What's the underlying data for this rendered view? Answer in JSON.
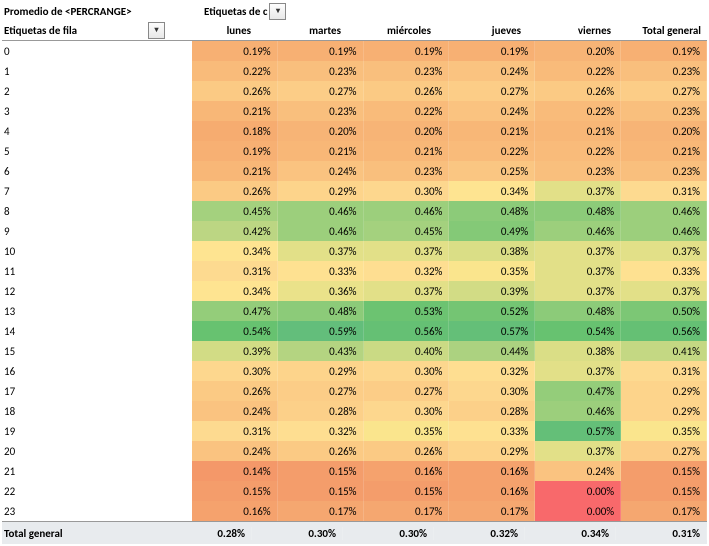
{
  "title_left": "Promedio de <PERCRANGE>",
  "title_right": "Etiquetas de c",
  "row_header_label": "Etiquetas de fila",
  "total_label": "Total general",
  "columns": [
    "lunes",
    "martes",
    "miércoles",
    "jueves",
    "viernes",
    "Total general"
  ],
  "rows": [
    {
      "label": "0",
      "cells": [
        {
          "v": "0.19%",
          "c": "#f7b073"
        },
        {
          "v": "0.19%",
          "c": "#f7b073"
        },
        {
          "v": "0.19%",
          "c": "#f7b073"
        },
        {
          "v": "0.19%",
          "c": "#f7b073"
        },
        {
          "v": "0.20%",
          "c": "#f7b476"
        },
        {
          "v": "0.19%",
          "c": "#f7b073"
        }
      ]
    },
    {
      "label": "1",
      "cells": [
        {
          "v": "0.22%",
          "c": "#f9bb7a"
        },
        {
          "v": "0.23%",
          "c": "#f9bf7d"
        },
        {
          "v": "0.23%",
          "c": "#f9bf7d"
        },
        {
          "v": "0.24%",
          "c": "#fac380"
        },
        {
          "v": "0.22%",
          "c": "#f9bb7a"
        },
        {
          "v": "0.23%",
          "c": "#f9bf7d"
        }
      ]
    },
    {
      "label": "2",
      "cells": [
        {
          "v": "0.26%",
          "c": "#fbca84"
        },
        {
          "v": "0.27%",
          "c": "#fccd87"
        },
        {
          "v": "0.26%",
          "c": "#fbca84"
        },
        {
          "v": "0.27%",
          "c": "#fccd87"
        },
        {
          "v": "0.26%",
          "c": "#fbca84"
        },
        {
          "v": "0.27%",
          "c": "#fccd87"
        }
      ]
    },
    {
      "label": "3",
      "cells": [
        {
          "v": "0.21%",
          "c": "#f8b777"
        },
        {
          "v": "0.23%",
          "c": "#f9bf7d"
        },
        {
          "v": "0.22%",
          "c": "#f9bb7a"
        },
        {
          "v": "0.24%",
          "c": "#fac380"
        },
        {
          "v": "0.22%",
          "c": "#f9bb7a"
        },
        {
          "v": "0.23%",
          "c": "#f9bf7d"
        }
      ]
    },
    {
      "label": "4",
      "cells": [
        {
          "v": "0.18%",
          "c": "#f6ac70"
        },
        {
          "v": "0.20%",
          "c": "#f7b476"
        },
        {
          "v": "0.20%",
          "c": "#f7b476"
        },
        {
          "v": "0.21%",
          "c": "#f8b777"
        },
        {
          "v": "0.21%",
          "c": "#f8b777"
        },
        {
          "v": "0.20%",
          "c": "#f7b476"
        }
      ]
    },
    {
      "label": "5",
      "cells": [
        {
          "v": "0.19%",
          "c": "#f7b073"
        },
        {
          "v": "0.21%",
          "c": "#f8b777"
        },
        {
          "v": "0.21%",
          "c": "#f8b777"
        },
        {
          "v": "0.22%",
          "c": "#f9bb7a"
        },
        {
          "v": "0.22%",
          "c": "#f9bb7a"
        },
        {
          "v": "0.21%",
          "c": "#f8b777"
        }
      ]
    },
    {
      "label": "6",
      "cells": [
        {
          "v": "0.21%",
          "c": "#f8b777"
        },
        {
          "v": "0.24%",
          "c": "#fac380"
        },
        {
          "v": "0.23%",
          "c": "#f9bf7d"
        },
        {
          "v": "0.25%",
          "c": "#fac682"
        },
        {
          "v": "0.23%",
          "c": "#f9bf7d"
        },
        {
          "v": "0.23%",
          "c": "#f9bf7d"
        }
      ]
    },
    {
      "label": "7",
      "cells": [
        {
          "v": "0.26%",
          "c": "#fbca84"
        },
        {
          "v": "0.29%",
          "c": "#fdd48b"
        },
        {
          "v": "0.30%",
          "c": "#fdd78e"
        },
        {
          "v": "0.34%",
          "c": "#fee491"
        },
        {
          "v": "0.37%",
          "c": "#e2e088"
        },
        {
          "v": "0.31%",
          "c": "#fdda90"
        }
      ]
    },
    {
      "label": "8",
      "cells": [
        {
          "v": "0.45%",
          "c": "#a4d17e"
        },
        {
          "v": "0.46%",
          "c": "#9ccf7c"
        },
        {
          "v": "0.46%",
          "c": "#9ccf7c"
        },
        {
          "v": "0.48%",
          "c": "#8ccb79"
        },
        {
          "v": "0.48%",
          "c": "#8ccb79"
        },
        {
          "v": "0.46%",
          "c": "#9ccf7c"
        }
      ]
    },
    {
      "label": "9",
      "cells": [
        {
          "v": "0.42%",
          "c": "#bcd683"
        },
        {
          "v": "0.46%",
          "c": "#9ccf7c"
        },
        {
          "v": "0.45%",
          "c": "#a4d17e"
        },
        {
          "v": "0.49%",
          "c": "#84c977"
        },
        {
          "v": "0.46%",
          "c": "#9ccf7c"
        },
        {
          "v": "0.46%",
          "c": "#9ccf7c"
        }
      ]
    },
    {
      "label": "10",
      "cells": [
        {
          "v": "0.34%",
          "c": "#fee491"
        },
        {
          "v": "0.37%",
          "c": "#e2e088"
        },
        {
          "v": "0.37%",
          "c": "#e2e088"
        },
        {
          "v": "0.38%",
          "c": "#dade86"
        },
        {
          "v": "0.37%",
          "c": "#e2e088"
        },
        {
          "v": "0.37%",
          "c": "#e2e088"
        }
      ]
    },
    {
      "label": "11",
      "cells": [
        {
          "v": "0.31%",
          "c": "#fdda90"
        },
        {
          "v": "0.33%",
          "c": "#fee191"
        },
        {
          "v": "0.32%",
          "c": "#fede91"
        },
        {
          "v": "0.35%",
          "c": "#fae58d"
        },
        {
          "v": "0.37%",
          "c": "#e2e088"
        },
        {
          "v": "0.33%",
          "c": "#fee191"
        }
      ]
    },
    {
      "label": "12",
      "cells": [
        {
          "v": "0.34%",
          "c": "#fee491"
        },
        {
          "v": "0.36%",
          "c": "#eae28a"
        },
        {
          "v": "0.37%",
          "c": "#e2e088"
        },
        {
          "v": "0.39%",
          "c": "#d2dc85"
        },
        {
          "v": "0.37%",
          "c": "#e2e088"
        },
        {
          "v": "0.37%",
          "c": "#e2e088"
        }
      ]
    },
    {
      "label": "13",
      "cells": [
        {
          "v": "0.47%",
          "c": "#94cd7a"
        },
        {
          "v": "0.48%",
          "c": "#8ccb79"
        },
        {
          "v": "0.53%",
          "c": "#6cc371"
        },
        {
          "v": "0.52%",
          "c": "#74c573"
        },
        {
          "v": "0.48%",
          "c": "#8ccb79"
        },
        {
          "v": "0.50%",
          "c": "#7cc775"
        }
      ]
    },
    {
      "label": "14",
      "cells": [
        {
          "v": "0.54%",
          "c": "#67c270"
        },
        {
          "v": "0.59%",
          "c": "#63be7b"
        },
        {
          "v": "0.56%",
          "c": "#65c074"
        },
        {
          "v": "0.57%",
          "c": "#64bf78"
        },
        {
          "v": "0.54%",
          "c": "#67c270"
        },
        {
          "v": "0.56%",
          "c": "#65c074"
        }
      ]
    },
    {
      "label": "15",
      "cells": [
        {
          "v": "0.39%",
          "c": "#d2dc85"
        },
        {
          "v": "0.43%",
          "c": "#b4d481"
        },
        {
          "v": "0.40%",
          "c": "#cada84"
        },
        {
          "v": "0.44%",
          "c": "#acd280"
        },
        {
          "v": "0.38%",
          "c": "#dade86"
        },
        {
          "v": "0.41%",
          "c": "#c4d883"
        }
      ]
    },
    {
      "label": "16",
      "cells": [
        {
          "v": "0.30%",
          "c": "#fdd78e"
        },
        {
          "v": "0.29%",
          "c": "#fdd48b"
        },
        {
          "v": "0.30%",
          "c": "#fdd78e"
        },
        {
          "v": "0.32%",
          "c": "#fede91"
        },
        {
          "v": "0.37%",
          "c": "#e2e088"
        },
        {
          "v": "0.31%",
          "c": "#fdda90"
        }
      ]
    },
    {
      "label": "17",
      "cells": [
        {
          "v": "0.26%",
          "c": "#fbca84"
        },
        {
          "v": "0.27%",
          "c": "#fccd87"
        },
        {
          "v": "0.27%",
          "c": "#fccd87"
        },
        {
          "v": "0.30%",
          "c": "#fdd78e"
        },
        {
          "v": "0.47%",
          "c": "#94cd7a"
        },
        {
          "v": "0.29%",
          "c": "#fdd48b"
        }
      ]
    },
    {
      "label": "18",
      "cells": [
        {
          "v": "0.24%",
          "c": "#fac380"
        },
        {
          "v": "0.28%",
          "c": "#fcd089"
        },
        {
          "v": "0.30%",
          "c": "#fdd78e"
        },
        {
          "v": "0.28%",
          "c": "#fcd089"
        },
        {
          "v": "0.46%",
          "c": "#9ccf7c"
        },
        {
          "v": "0.29%",
          "c": "#fdd48b"
        }
      ]
    },
    {
      "label": "19",
      "cells": [
        {
          "v": "0.31%",
          "c": "#fdda90"
        },
        {
          "v": "0.32%",
          "c": "#fede91"
        },
        {
          "v": "0.35%",
          "c": "#fae58d"
        },
        {
          "v": "0.33%",
          "c": "#fee191"
        },
        {
          "v": "0.57%",
          "c": "#64bf78"
        },
        {
          "v": "0.35%",
          "c": "#fae58d"
        }
      ]
    },
    {
      "label": "20",
      "cells": [
        {
          "v": "0.24%",
          "c": "#fac380"
        },
        {
          "v": "0.26%",
          "c": "#fbca84"
        },
        {
          "v": "0.26%",
          "c": "#fbca84"
        },
        {
          "v": "0.29%",
          "c": "#fdd48b"
        },
        {
          "v": "0.37%",
          "c": "#e2e088"
        },
        {
          "v": "0.27%",
          "c": "#fccd87"
        }
      ]
    },
    {
      "label": "21",
      "cells": [
        {
          "v": "0.14%",
          "c": "#f49869"
        },
        {
          "v": "0.15%",
          "c": "#f49d6b"
        },
        {
          "v": "0.16%",
          "c": "#f5a26d"
        },
        {
          "v": "0.16%",
          "c": "#f5a26d"
        },
        {
          "v": "0.24%",
          "c": "#fac380"
        },
        {
          "v": "0.15%",
          "c": "#f49d6b"
        }
      ]
    },
    {
      "label": "22",
      "cells": [
        {
          "v": "0.15%",
          "c": "#f49d6b"
        },
        {
          "v": "0.15%",
          "c": "#f49d6b"
        },
        {
          "v": "0.15%",
          "c": "#f49d6b"
        },
        {
          "v": "0.16%",
          "c": "#f5a26d"
        },
        {
          "v": "0.00%",
          "c": "#f8696b"
        },
        {
          "v": "0.15%",
          "c": "#f49d6b"
        }
      ]
    },
    {
      "label": "23",
      "cells": [
        {
          "v": "0.16%",
          "c": "#f5a26d"
        },
        {
          "v": "0.17%",
          "c": "#f5a770"
        },
        {
          "v": "0.17%",
          "c": "#f5a770"
        },
        {
          "v": "0.17%",
          "c": "#f5a770"
        },
        {
          "v": "0.00%",
          "c": "#f8696b"
        },
        {
          "v": "0.17%",
          "c": "#f5a770"
        }
      ]
    }
  ],
  "totals": [
    "0.28%",
    "0.30%",
    "0.30%",
    "0.32%",
    "0.34%",
    "0.31%"
  ]
}
